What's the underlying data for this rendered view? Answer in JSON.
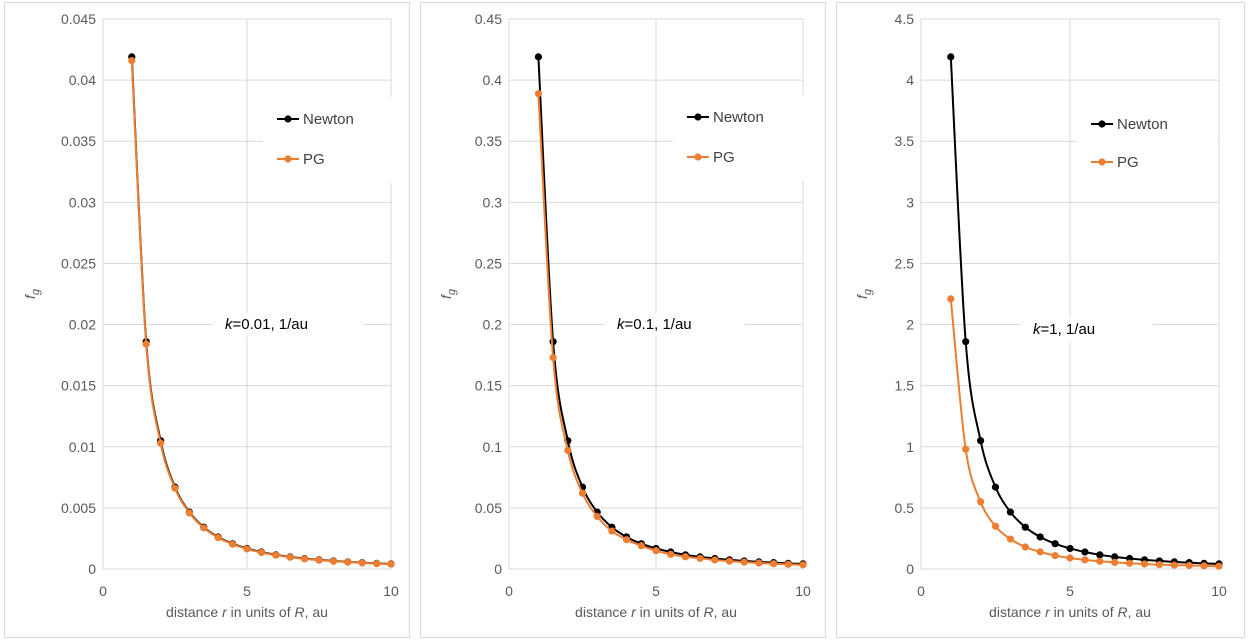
{
  "chart_data": [
    {
      "type": "line",
      "ylabel": "f_g",
      "xlabel": "distance r in units of R, au",
      "xlim": [
        0,
        10
      ],
      "ylim": [
        0,
        0.045
      ],
      "yticks": [
        "0",
        "0.005",
        "0.01",
        "0.015",
        "0.02",
        "0.025",
        "0.03",
        "0.035",
        "0.04",
        "0.045"
      ],
      "xticks": [
        "0",
        "5",
        "10"
      ],
      "annotation": {
        "italic": "k",
        "rest": "=0.01, 1/au"
      },
      "legend_position": "top-right",
      "grid": true,
      "x": [
        1,
        1.5,
        2,
        2.5,
        3,
        3.5,
        4,
        4.5,
        5,
        5.5,
        6,
        6.5,
        7,
        7.5,
        8,
        8.5,
        9,
        9.5,
        10
      ],
      "series": [
        {
          "name": "Newton",
          "color": "#000000",
          "values": [
            0.0419,
            0.0186,
            0.0105,
            0.0067,
            0.00466,
            0.00342,
            0.00262,
            0.00207,
            0.00168,
            0.00139,
            0.00116,
            0.00099,
            0.00086,
            0.00075,
            0.00066,
            0.00058,
            0.00052,
            0.00046,
            0.00042
          ]
        },
        {
          "name": "PG",
          "color": "#ed7d31",
          "values": [
            0.0416,
            0.0184,
            0.0103,
            0.0066,
            0.00459,
            0.00336,
            0.00257,
            0.00203,
            0.00164,
            0.00135,
            0.00113,
            0.00096,
            0.00083,
            0.00072,
            0.00063,
            0.00056,
            0.0005,
            0.00044,
            0.0004
          ]
        }
      ]
    },
    {
      "type": "line",
      "ylabel": "f_g",
      "xlabel": "distance r in units of R, au",
      "xlim": [
        0,
        10
      ],
      "ylim": [
        0,
        0.45
      ],
      "yticks": [
        "0",
        "0.05",
        "0.1",
        "0.15",
        "0.2",
        "0.25",
        "0.3",
        "0.35",
        "0.4",
        "0.45"
      ],
      "xticks": [
        "0",
        "5",
        "10"
      ],
      "annotation": {
        "italic": "k",
        "rest": "=0.1,  1/au"
      },
      "legend_position": "top-right",
      "grid": true,
      "x": [
        1,
        1.5,
        2,
        2.5,
        3,
        3.5,
        4,
        4.5,
        5,
        5.5,
        6,
        6.5,
        7,
        7.5,
        8,
        8.5,
        9,
        9.5,
        10
      ],
      "series": [
        {
          "name": "Newton",
          "color": "#000000",
          "values": [
            0.419,
            0.186,
            0.105,
            0.067,
            0.0466,
            0.0342,
            0.0262,
            0.0207,
            0.0168,
            0.0139,
            0.0116,
            0.0099,
            0.0086,
            0.0075,
            0.0066,
            0.0058,
            0.0052,
            0.0046,
            0.0042
          ]
        },
        {
          "name": "PG",
          "color": "#ed7d31",
          "values": [
            0.389,
            0.173,
            0.097,
            0.062,
            0.043,
            0.031,
            0.024,
            0.019,
            0.015,
            0.012,
            0.01,
            0.0087,
            0.0074,
            0.0064,
            0.0056,
            0.0049,
            0.0043,
            0.0038,
            0.0034
          ]
        }
      ]
    },
    {
      "type": "line",
      "ylabel": "f_g",
      "xlabel": "distance r in units of R, au",
      "xlim": [
        0,
        10
      ],
      "ylim": [
        0,
        4.5
      ],
      "yticks": [
        "0",
        "0.5",
        "1",
        "1.5",
        "2",
        "2.5",
        "3",
        "3.5",
        "4",
        "4.5"
      ],
      "xticks": [
        "0",
        "5",
        "10"
      ],
      "annotation": {
        "italic": "k",
        "rest": "=1,  1/au"
      },
      "legend_position": "top-right",
      "grid": true,
      "x": [
        1,
        1.5,
        2,
        2.5,
        3,
        3.5,
        4,
        4.5,
        5,
        5.5,
        6,
        6.5,
        7,
        7.5,
        8,
        8.5,
        9,
        9.5,
        10
      ],
      "series": [
        {
          "name": "Newton",
          "color": "#000000",
          "values": [
            4.19,
            1.86,
            1.05,
            0.67,
            0.466,
            0.342,
            0.262,
            0.207,
            0.168,
            0.139,
            0.116,
            0.099,
            0.086,
            0.075,
            0.066,
            0.058,
            0.052,
            0.046,
            0.042
          ]
        },
        {
          "name": "PG",
          "color": "#ed7d31",
          "values": [
            2.21,
            0.98,
            0.55,
            0.35,
            0.245,
            0.18,
            0.14,
            0.11,
            0.09,
            0.075,
            0.063,
            0.054,
            0.047,
            0.041,
            0.036,
            0.032,
            0.029,
            0.026,
            0.023
          ]
        }
      ]
    }
  ]
}
